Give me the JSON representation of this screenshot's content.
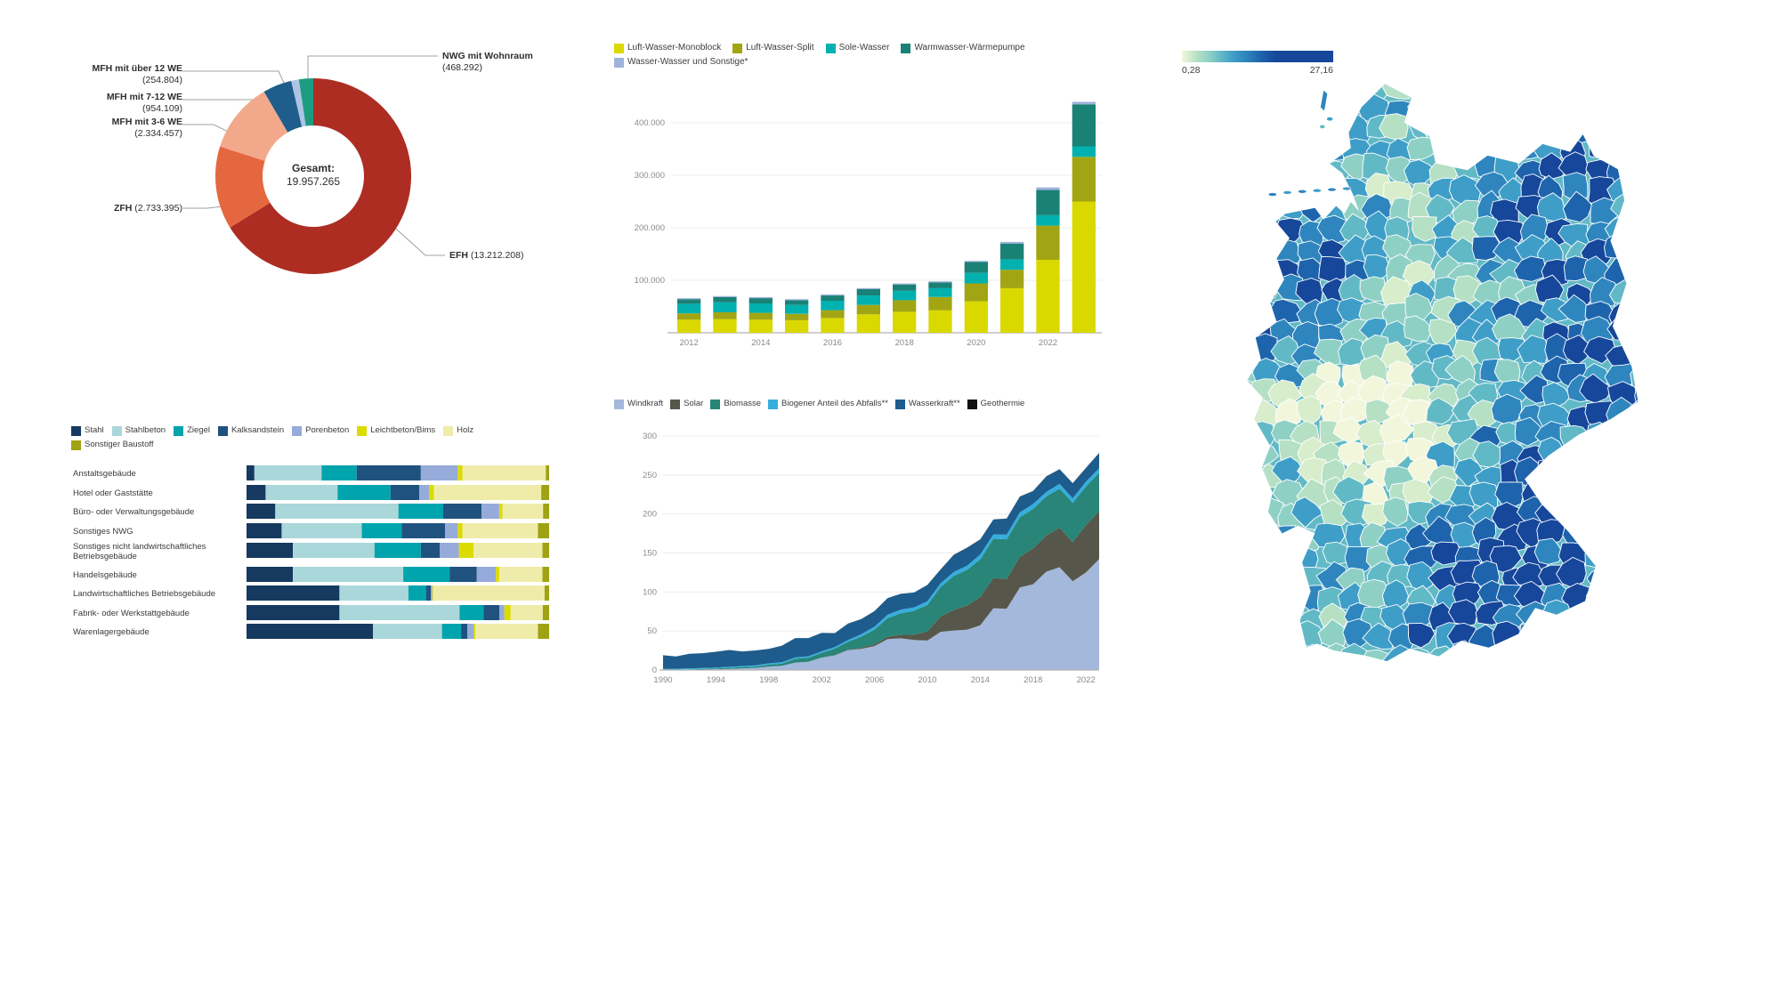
{
  "map_scale": {
    "min_label": "0,28",
    "max_label": "27,16"
  },
  "chart_data": [
    {
      "type": "pie",
      "subtype": "donut",
      "center_title": "Gesamt:",
      "center_value": "19.957.265",
      "slices": [
        {
          "name": "EFH",
          "value": 13212208,
          "color": "#ad2d23"
        },
        {
          "name": "ZFH",
          "value": 2733395,
          "color": "#e5673f"
        },
        {
          "name": "MFH mit 3-6 WE",
          "value": 2334457,
          "color": "#f2a98b"
        },
        {
          "name": "MFH mit 7-12 WE",
          "value": 954109,
          "color": "#1e5d8c"
        },
        {
          "name": "MFH mit über 12 WE",
          "value": 254804,
          "color": "#adc4e4"
        },
        {
          "name": "NWG mit Wohnraum",
          "value": 468292,
          "color": "#1d9b80"
        }
      ],
      "callouts": {
        "mfh_ueber_12": {
          "name": "MFH mit über 12 WE",
          "value": "(254.804)"
        },
        "mfh_7_12": {
          "name": "MFH mit 7-12 WE",
          "value": "(954.109)"
        },
        "mfh_3_6": {
          "name": "MFH mit 3-6 WE",
          "value": "(2.334.457)"
        },
        "zfh": {
          "name": "ZFH",
          "value": "(2.733.395)"
        },
        "efh": {
          "name": "EFH",
          "value": "(13.212.208)"
        },
        "nwg": {
          "name": "NWG mit Wohnraum",
          "value": "(468.292)"
        }
      }
    },
    {
      "type": "bar",
      "subtype": "stacked-vertical",
      "years": [
        2012,
        2013,
        2014,
        2015,
        2016,
        2017,
        2018,
        2019,
        2020,
        2021,
        2022,
        2023
      ],
      "x_ticks": [
        "2012",
        "2014",
        "2016",
        "2018",
        "2020",
        "2022"
      ],
      "y_ticks": [
        "100.000",
        "200.000",
        "300.000",
        "400.000"
      ],
      "y_tick_values": [
        100000,
        200000,
        300000,
        400000
      ],
      "ylim": [
        0,
        450000
      ],
      "series": [
        {
          "name": "Luft-Wasser-Monoblock",
          "color": "#d9d900",
          "values": [
            25000,
            26000,
            25000,
            24000,
            28000,
            35000,
            40000,
            43000,
            60000,
            85000,
            139000,
            250000
          ]
        },
        {
          "name": "Luft-Wasser-Split",
          "color": "#a2a513",
          "values": [
            12000,
            13000,
            13000,
            12000,
            15000,
            18000,
            22000,
            25000,
            34000,
            35000,
            65000,
            85000
          ]
        },
        {
          "name": "Sole-Wasser",
          "color": "#00b1af",
          "values": [
            18000,
            19000,
            18000,
            17000,
            18000,
            18000,
            18000,
            17000,
            20000,
            20000,
            20000,
            20000
          ]
        },
        {
          "name": "Warmwasser-Wärmepumpe",
          "color": "#1a8176",
          "values": [
            9000,
            10000,
            10000,
            9000,
            10000,
            12000,
            12000,
            11000,
            21000,
            30000,
            48000,
            80000
          ]
        },
        {
          "name": "Wasser-Wasser und Sonstige*",
          "color": "#9fb3da",
          "values": [
            2000,
            2000,
            2000,
            2000,
            2000,
            2000,
            2000,
            2000,
            2000,
            3000,
            5000,
            5000
          ]
        }
      ]
    },
    {
      "type": "bar",
      "subtype": "stacked-horizontal-100",
      "categories": [
        [
          "Anstaltsgebäude"
        ],
        [
          "Hotel oder Gaststätte"
        ],
        [
          "Büro- oder Verwaltungsgebäude"
        ],
        [
          "Sonstiges NWG"
        ],
        [
          "Sonstiges nicht landwirtschaftliches",
          "Betriebsgebäude"
        ],
        [
          "Handelsgebäude"
        ],
        [
          "Landwirtschaftliches Betriebsgebäude"
        ],
        [
          "Fabrik- oder Werkstattgebäude"
        ],
        [
          "Warenlagergebäude"
        ]
      ],
      "unit": "percent",
      "series": [
        {
          "name": "Stahl",
          "color": "#16395f",
          "values": [
            2.6,
            6.3,
            9.5,
            11.6,
            15.3,
            15.3,
            30.7,
            30.7,
            41.8
          ]
        },
        {
          "name": "Stahlbeton",
          "color": "#a9d7da",
          "values": [
            22.2,
            23.8,
            40.7,
            26.5,
            27.0,
            36.5,
            22.8,
            39.7,
            22.8
          ]
        },
        {
          "name": "Ziegel",
          "color": "#00a4ad",
          "values": [
            11.6,
            17.5,
            14.8,
            13.2,
            15.3,
            15.3,
            5.8,
            7.9,
            6.3
          ]
        },
        {
          "name": "Kalksandstein",
          "color": "#20527f",
          "values": [
            21.2,
            9.5,
            12.7,
            14.3,
            6.3,
            9.0,
            1.6,
            5.3,
            2.1
          ]
        },
        {
          "name": "Porenbeton",
          "color": "#96abd9",
          "values": [
            12.2,
            3.2,
            5.8,
            4.2,
            6.3,
            6.3,
            0.5,
            1.6,
            2.1
          ]
        },
        {
          "name": "Leichtbeton/Bims",
          "color": "#dcdb00",
          "values": [
            1.6,
            1.6,
            1.1,
            1.6,
            4.8,
            1.1,
            0.3,
            2.1,
            0.5
          ]
        },
        {
          "name": "Holz",
          "color": "#efecaa",
          "values": [
            27.5,
            35.5,
            13.4,
            24.9,
            22.8,
            14.3,
            36.8,
            10.6,
            20.7
          ]
        },
        {
          "name": "Sonstiger Baustoff",
          "color": "#9fa313",
          "values": [
            1.1,
            2.6,
            2.0,
            3.7,
            2.2,
            2.2,
            1.5,
            2.1,
            3.7
          ]
        }
      ]
    },
    {
      "type": "area",
      "subtype": "stacked",
      "years": [
        1990,
        1991,
        1992,
        1993,
        1994,
        1995,
        1996,
        1997,
        1998,
        1999,
        2000,
        2001,
        2002,
        2003,
        2004,
        2005,
        2006,
        2007,
        2008,
        2009,
        2010,
        2011,
        2012,
        2013,
        2014,
        2015,
        2016,
        2017,
        2018,
        2019,
        2020,
        2021,
        2022,
        2023
      ],
      "x_ticks": [
        "1990",
        "1994",
        "1998",
        "2002",
        "2006",
        "2010",
        "2014",
        "2018",
        "2022"
      ],
      "y_ticks": [
        "0",
        "50",
        "100",
        "150",
        "200",
        "250",
        "300"
      ],
      "ylim": [
        0,
        300
      ],
      "series": [
        {
          "name": "Windkraft",
          "color": "#a4b8dc",
          "values": [
            0.1,
            0.1,
            0.3,
            0.6,
            0.9,
            1.5,
            2.0,
            2.7,
            4.5,
            5.5,
            9.5,
            10.5,
            15.8,
            18.7,
            25.5,
            27.2,
            30.7,
            39.7,
            40.6,
            38.6,
            37.8,
            48.9,
            50.7,
            51.7,
            57.4,
            79.2,
            78.6,
            105.7,
            110.0,
            126.0,
            131.8,
            113.8,
            125.0,
            142.1
          ]
        },
        {
          "name": "Solar",
          "color": "#56564a",
          "values": [
            0.0,
            0.0,
            0.0,
            0.0,
            0.0,
            0.0,
            0.0,
            0.0,
            0.0,
            0.0,
            0.1,
            0.1,
            0.2,
            0.3,
            0.6,
            1.3,
            2.2,
            3.1,
            4.4,
            6.6,
            11.7,
            19.6,
            26.4,
            31.0,
            36.1,
            38.7,
            38.1,
            39.4,
            45.8,
            46.4,
            50.6,
            50.0,
            60.8,
            61.5
          ]
        },
        {
          "name": "Biomasse",
          "color": "#298578",
          "values": [
            0.2,
            0.3,
            0.6,
            0.7,
            1.0,
            1.3,
            1.6,
            1.8,
            2.3,
            2.8,
            4.7,
            5.2,
            6.0,
            8.4,
            10.2,
            14.3,
            18.9,
            23.8,
            27.7,
            30.7,
            33.9,
            37.8,
            43.5,
            45.6,
            48.3,
            50.3,
            50.9,
            50.9,
            50.8,
            50.1,
            50.2,
            50.3,
            49.6,
            49.1
          ]
        },
        {
          "name": "Biogener Anteil des Abfalls**",
          "color": "#35aede",
          "values": [
            1.2,
            1.2,
            1.3,
            1.3,
            1.3,
            1.3,
            1.4,
            1.6,
            1.7,
            1.7,
            1.8,
            1.9,
            1.9,
            2.2,
            2.3,
            3.0,
            3.7,
            4.5,
            4.7,
            4.4,
            4.7,
            4.8,
            5.0,
            5.4,
            6.1,
            5.8,
            5.9,
            6.0,
            6.2,
            5.8,
            6.0,
            6.1,
            6.1,
            5.9
          ]
        },
        {
          "name": "Wasserkraft**",
          "color": "#1d5c8c",
          "values": [
            17.4,
            15.9,
            18.6,
            19.0,
            20.2,
            21.6,
            18.8,
            19.0,
            18.6,
            21.3,
            24.9,
            23.2,
            23.7,
            17.7,
            21.0,
            19.6,
            20.0,
            21.2,
            20.4,
            19.0,
            21.0,
            17.7,
            22.1,
            23.0,
            19.6,
            19.0,
            20.5,
            20.2,
            16.6,
            19.7,
            18.7,
            19.1,
            17.5,
            19.5
          ]
        },
        {
          "name": "Geothermie",
          "color": "#111111",
          "values": [
            0,
            0,
            0,
            0,
            0,
            0,
            0,
            0,
            0,
            0,
            0,
            0,
            0,
            0,
            0,
            0,
            0,
            0,
            0,
            0,
            0,
            0.1,
            0.1,
            0.1,
            0.1,
            0.1,
            0.2,
            0.2,
            0.2,
            0.2,
            0.2,
            0.2,
            0.2,
            0.2
          ]
        }
      ]
    },
    {
      "type": "heatmap",
      "subtype": "choropleth-map",
      "scale_min": "0,28",
      "scale_max": "27,16",
      "legend_position": "top-left",
      "palette": [
        "#f2f7dc",
        "#d8edcb",
        "#b5e0c4",
        "#8fd0c5",
        "#62b9c6",
        "#3f9ec7",
        "#2f86be",
        "#1e64ad",
        "#16479b"
      ]
    }
  ]
}
